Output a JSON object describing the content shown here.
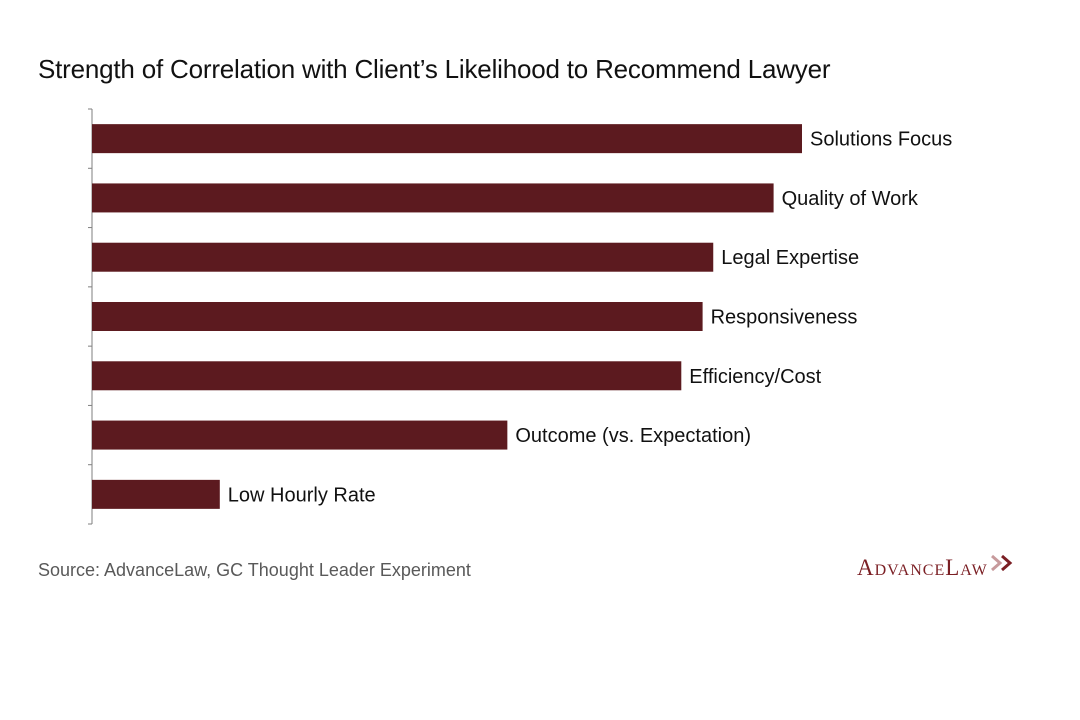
{
  "title": "Strength of Correlation with Client’s Likelihood to Recommend Lawyer",
  "source": "Source: AdvanceLaw, GC Thought Leader Experiment",
  "logo": "AdvanceLaw",
  "colors": {
    "bar": "#5c1a1f",
    "axis": "#7f7f7f",
    "text": "#111111",
    "logo": "#7b1f24"
  },
  "chart_data": {
    "type": "bar",
    "orientation": "horizontal",
    "title": "Strength of Correlation with Client’s Likelihood to Recommend Lawyer",
    "xlabel": "",
    "ylabel": "",
    "categories": [
      "Solutions Focus",
      "Quality of Work",
      "Legal Expertise",
      "Responsiveness",
      "Efficiency/Cost",
      "Outcome (vs. Expectation)",
      "Low Hourly Rate"
    ],
    "values": [
      100,
      96,
      87.5,
      86,
      83,
      58.5,
      18
    ],
    "xlim": [
      0,
      100
    ],
    "grid": false,
    "legend": "none",
    "labels_at_bar_end": true
  }
}
